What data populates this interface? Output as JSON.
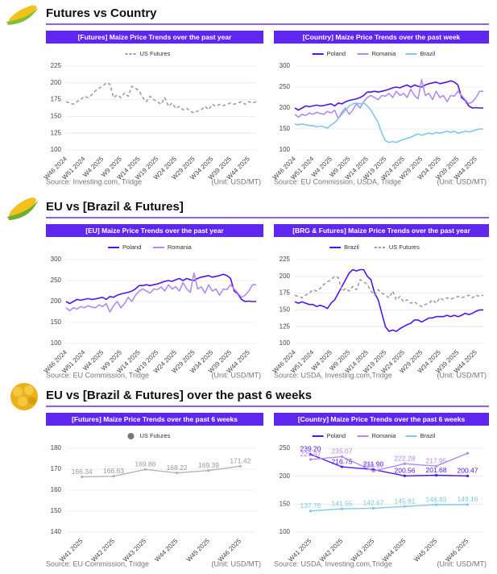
{
  "sections": [
    {
      "title": "Futures vs Country"
    },
    {
      "title": "EU vs [Brazil & Futures]"
    },
    {
      "title": "EU vs [Brazil & Futures] over the past 6 weeks"
    }
  ],
  "chart_data": [
    {
      "type": "line",
      "title": "[Futures] Maize Price Trends over the past year",
      "source": "Source: Investing.com, Tridge",
      "unit": "(Unit: USD/MT)",
      "legend": "top",
      "grid": true,
      "categories": [
        "W46 2024",
        null,
        null,
        null,
        null,
        "W51 2024",
        null,
        null,
        null,
        null,
        "W4 2025",
        null,
        null,
        null,
        null,
        "W9 2025",
        null,
        null,
        null,
        null,
        "W14 2025",
        null,
        null,
        null,
        null,
        "W19 2025",
        null,
        null,
        null,
        null,
        "W24 2025",
        null,
        null,
        null,
        null,
        "W29 2025",
        null,
        null,
        null,
        null,
        "W34 2025",
        null,
        null,
        null,
        null,
        "W39 2025",
        null,
        null,
        null,
        null,
        "W44 2025",
        null,
        null
      ],
      "series": [
        {
          "name": "US Futures",
          "color": "#9e9e9e",
          "dash": true,
          "values": [
            172,
            170,
            168,
            172,
            175,
            180,
            178,
            182,
            188,
            192,
            195,
            200,
            198,
            178,
            182,
            178,
            185,
            180,
            195,
            192,
            188,
            178,
            172,
            180,
            175,
            172,
            168,
            178,
            165,
            170,
            162,
            165,
            160,
            162,
            158,
            155,
            158,
            160,
            165,
            160,
            168,
            165,
            168,
            166,
            168,
            170,
            168,
            170,
            172,
            168,
            172,
            170,
            172
          ]
        }
      ],
      "ylim": [
        100,
        225
      ],
      "yticks": [
        100,
        125,
        150,
        175,
        200,
        225
      ]
    },
    {
      "type": "line",
      "title": "[Country] Maize Price Trends over the past week",
      "source": "Source: EU Commission, USDA, Tridge",
      "unit": "(Unit: USD/MT)",
      "legend": "top",
      "grid": true,
      "categories": [
        "W46 2024",
        null,
        null,
        null,
        null,
        "W51 2024",
        null,
        null,
        null,
        null,
        "W4 2025",
        null,
        null,
        null,
        null,
        "W9 2025",
        null,
        null,
        null,
        null,
        "W14 2025",
        null,
        null,
        null,
        null,
        "W19 2025",
        null,
        null,
        null,
        null,
        "W24 2025",
        null,
        null,
        null,
        null,
        "W29 2025",
        null,
        null,
        null,
        null,
        "W34 2025",
        null,
        null,
        null,
        null,
        "W39 2025",
        null,
        null,
        null,
        null,
        "W44 2025",
        null,
        null
      ],
      "series": [
        {
          "name": "Poland",
          "color": "#4f17e6",
          "values": [
            200,
            195,
            200,
            205,
            203,
            205,
            207,
            205,
            206,
            208,
            210,
            205,
            212,
            210,
            215,
            218,
            220,
            222,
            225,
            230,
            238,
            238,
            240,
            238,
            240,
            242,
            245,
            248,
            250,
            248,
            252,
            255,
            250,
            255,
            252,
            250,
            255,
            258,
            260,
            262,
            258,
            260,
            262,
            265,
            262,
            255,
            225,
            218,
            205,
            200,
            201,
            200,
            200
          ]
        },
        {
          "name": "Romania",
          "color": "#b28cf0",
          "values": [
            185,
            178,
            185,
            182,
            188,
            185,
            190,
            187,
            185,
            192,
            188,
            195,
            175,
            190,
            200,
            185,
            195,
            210,
            200,
            215,
            225,
            230,
            225,
            220,
            230,
            228,
            235,
            225,
            240,
            230,
            235,
            225,
            245,
            230,
            222,
            268,
            230,
            235,
            220,
            240,
            225,
            230,
            215,
            230,
            228,
            240,
            230,
            220,
            210,
            215,
            225,
            240,
            240
          ]
        },
        {
          "name": "Brazil",
          "color": "#80c8e8",
          "values": [
            162,
            160,
            162,
            160,
            158,
            158,
            155,
            157,
            155,
            152,
            160,
            165,
            175,
            185,
            195,
            205,
            210,
            212,
            210,
            212,
            205,
            195,
            180,
            165,
            140,
            122,
            118,
            120,
            118,
            122,
            125,
            128,
            130,
            135,
            138,
            135,
            138,
            140,
            138,
            142,
            140,
            142,
            145,
            142,
            145,
            140,
            142,
            145,
            143,
            145,
            148,
            150,
            150
          ]
        }
      ],
      "ylim": [
        100,
        300
      ],
      "yticks": [
        100,
        150,
        200,
        250,
        300
      ]
    },
    {
      "type": "line",
      "title": "[EU] Maize Price Trends over the past year",
      "source": "Source: EU Commission, Tridge",
      "unit": "(Unit: USD/MT)",
      "legend": "top",
      "grid": true,
      "categories": [
        "W46 2024",
        null,
        null,
        null,
        null,
        "W51 2024",
        null,
        null,
        null,
        null,
        "W4 2025",
        null,
        null,
        null,
        null,
        "W9 2025",
        null,
        null,
        null,
        null,
        "W14 2025",
        null,
        null,
        null,
        null,
        "W19 2025",
        null,
        null,
        null,
        null,
        "W24 2025",
        null,
        null,
        null,
        null,
        "W29 2025",
        null,
        null,
        null,
        null,
        "W34 2025",
        null,
        null,
        null,
        null,
        "W39 2025",
        null,
        null,
        null,
        null,
        "W44 2025",
        null,
        null
      ],
      "series": [
        {
          "name": "Poland",
          "color": "#4f17e6",
          "values": [
            200,
            195,
            200,
            205,
            203,
            205,
            207,
            205,
            206,
            208,
            210,
            205,
            212,
            210,
            215,
            218,
            220,
            222,
            225,
            230,
            238,
            238,
            240,
            238,
            240,
            242,
            245,
            248,
            250,
            248,
            252,
            255,
            250,
            255,
            252,
            250,
            255,
            258,
            260,
            262,
            258,
            260,
            262,
            265,
            262,
            255,
            225,
            218,
            205,
            200,
            201,
            200,
            200
          ]
        },
        {
          "name": "Romania",
          "color": "#b28cf0",
          "values": [
            185,
            178,
            185,
            182,
            188,
            185,
            190,
            187,
            185,
            192,
            188,
            195,
            175,
            190,
            200,
            185,
            195,
            210,
            200,
            215,
            225,
            230,
            225,
            220,
            230,
            228,
            235,
            225,
            240,
            230,
            235,
            225,
            245,
            230,
            222,
            268,
            230,
            235,
            220,
            240,
            225,
            230,
            215,
            230,
            228,
            240,
            230,
            220,
            210,
            215,
            225,
            240,
            240
          ]
        }
      ],
      "ylim": [
        100,
        300
      ],
      "yticks": [
        100,
        150,
        200,
        250,
        300
      ]
    },
    {
      "type": "line",
      "title": "[BRG & Futures] Maize Price Trends over the past year",
      "source": "Source: USDA, Investing.com,Tridge",
      "unit": "(Unit: USD/MT)",
      "legend": "top",
      "grid": true,
      "categories": [
        "W46 2024",
        null,
        null,
        null,
        null,
        "W51 2024",
        null,
        null,
        null,
        null,
        "W4 2025",
        null,
        null,
        null,
        null,
        "W9 2025",
        null,
        null,
        null,
        null,
        "W14 2025",
        null,
        null,
        null,
        null,
        "W19 2025",
        null,
        null,
        null,
        null,
        "W24 2025",
        null,
        null,
        null,
        null,
        "W29 2025",
        null,
        null,
        null,
        null,
        "W34 2025",
        null,
        null,
        null,
        null,
        "W39 2025",
        null,
        null,
        null,
        null,
        "W44 2025",
        null,
        null
      ],
      "series": [
        {
          "name": "Brazil",
          "color": "#4f17e6",
          "values": [
            162,
            160,
            162,
            160,
            158,
            158,
            155,
            157,
            155,
            152,
            160,
            165,
            175,
            185,
            195,
            205,
            210,
            208,
            210,
            210,
            200,
            195,
            175,
            165,
            145,
            125,
            118,
            120,
            118,
            122,
            125,
            128,
            130,
            135,
            135,
            132,
            135,
            138,
            138,
            140,
            140,
            140,
            142,
            140,
            142,
            140,
            142,
            145,
            143,
            145,
            148,
            150,
            150
          ]
        },
        {
          "name": "US Futures",
          "color": "#9e9e9e",
          "dash": true,
          "values": [
            172,
            170,
            168,
            172,
            175,
            180,
            178,
            182,
            188,
            192,
            195,
            200,
            198,
            178,
            182,
            178,
            185,
            180,
            195,
            192,
            188,
            178,
            172,
            180,
            175,
            172,
            168,
            178,
            165,
            170,
            162,
            165,
            160,
            162,
            158,
            155,
            158,
            160,
            165,
            160,
            168,
            165,
            168,
            166,
            168,
            170,
            168,
            170,
            172,
            168,
            172,
            170,
            172
          ]
        }
      ],
      "ylim": [
        100,
        225
      ],
      "yticks": [
        100,
        125,
        150,
        175,
        200,
        225
      ]
    },
    {
      "type": "line",
      "title": "[Futures] Maize Price Trends over the past 6 weeks",
      "source": "Source: EU Commission, Tridge",
      "unit": "(Unit: USD/MT)",
      "legend": "top",
      "grid": true,
      "categories": [
        "W41 2025",
        "W42 2025",
        "W43 2025",
        "W44 2025",
        "W45 2025",
        "W46 2025"
      ],
      "series": [
        {
          "name": "US Futures",
          "color": "#b5b5b5",
          "marker": "circle",
          "values": [
            166.34,
            166.63,
            169.88,
            168.22,
            169.39,
            171.42
          ]
        }
      ],
      "ylim": [
        140,
        180
      ],
      "yticks": [
        140,
        150,
        160,
        170,
        180
      ]
    },
    {
      "type": "line",
      "title": "[Country] Maize Price Trends over the past 6 weeks",
      "source": "Source: USDA, Investing.com,Tridge",
      "unit": "(Unit: USD/MT)",
      "legend": "top",
      "grid": true,
      "categories": [
        "W41 2025",
        "W42 2025",
        "W43 2025",
        "W44 2025",
        "W45 2025",
        "W46 2025"
      ],
      "series": [
        {
          "name": "Poland",
          "color": "#4f17e6",
          "values": [
            239.2,
            216.75,
            211.9,
            200.56,
            201.68,
            200.47
          ],
          "value_labels": [
            "239.20",
            "216.75",
            "211.90",
            "200.56",
            "201.68",
            "200.47"
          ]
        },
        {
          "name": "Romania",
          "color": "#b28cf0",
          "values": [
            229.97,
            235.07,
            208.97,
            222.28,
            217.95,
            241
          ],
          "value_labels": [
            "229.97",
            "235.07",
            "208.97",
            "222.28",
            "217.95",
            null
          ]
        },
        {
          "name": "Brazil",
          "color": "#80c8e8",
          "values": [
            137.76,
            141.55,
            142.67,
            145.91,
            148.83,
            149.16
          ]
        }
      ],
      "ylim": [
        100,
        250
      ],
      "yticks": [
        100,
        150,
        200,
        250
      ]
    }
  ]
}
